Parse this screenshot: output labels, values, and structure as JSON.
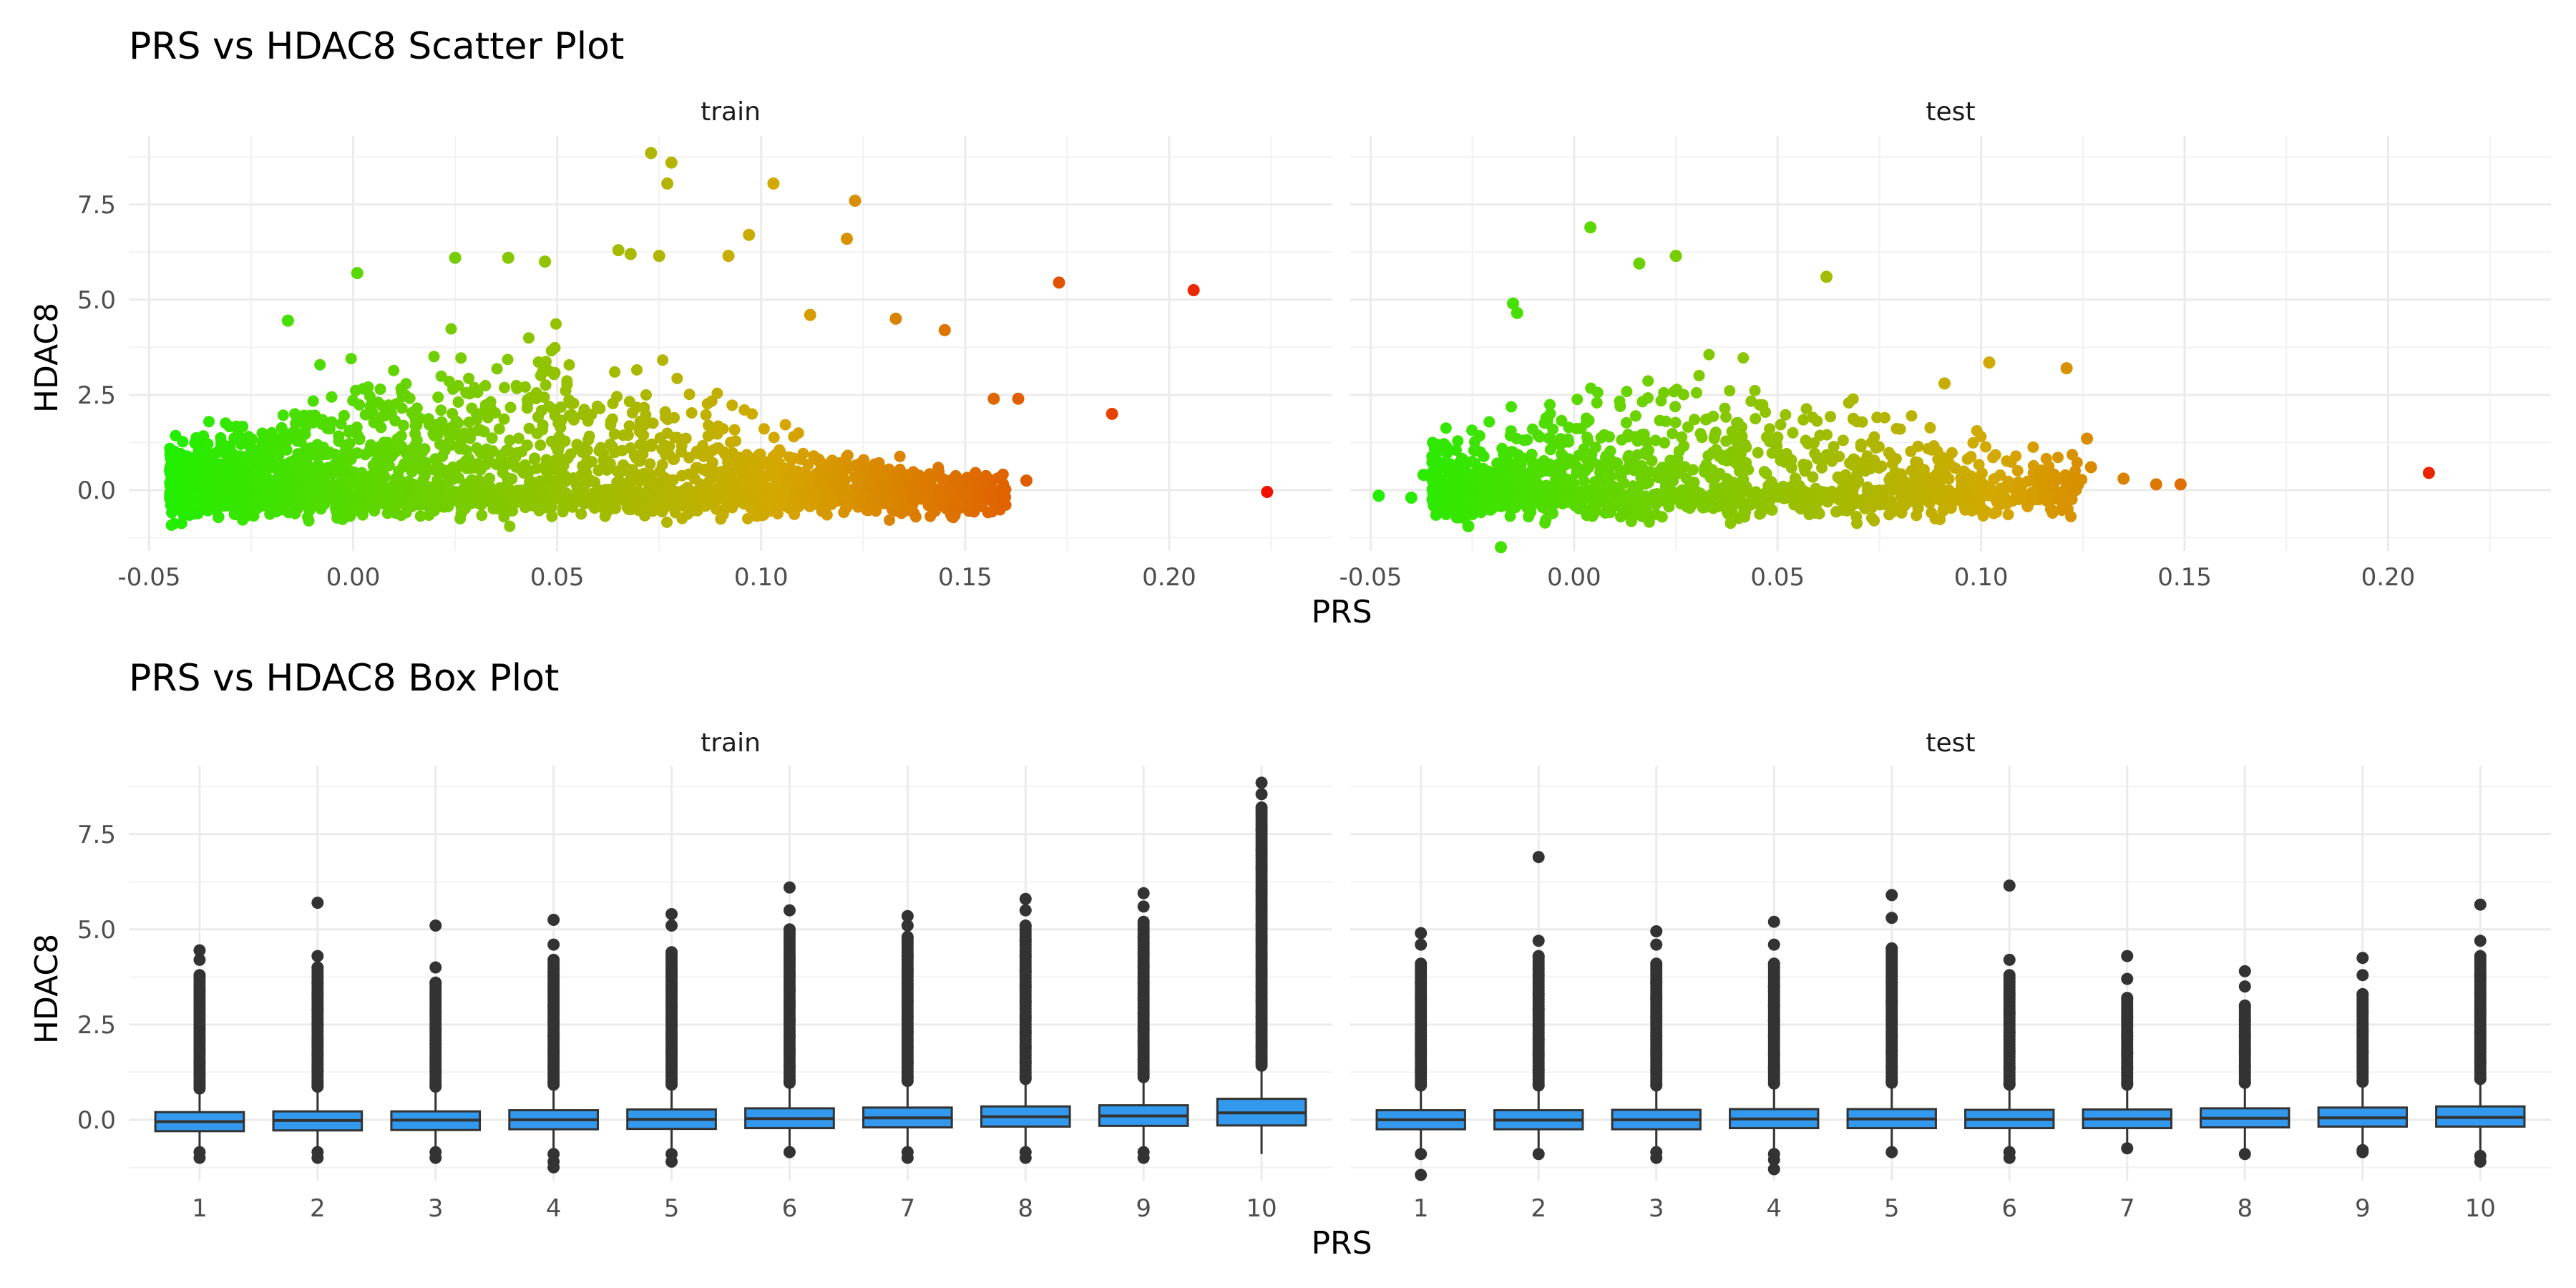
{
  "chart_data": [
    {
      "type": "scatter",
      "title": "PRS vs HDAC8 Scatter Plot",
      "xlabel": "PRS",
      "ylabel": "HDAC8",
      "xlim": [
        -0.055,
        0.24
      ],
      "ylim": [
        -1.6,
        9.3
      ],
      "x_ticks": [
        -0.05,
        0.0,
        0.05,
        0.1,
        0.15,
        0.2
      ],
      "x_tick_labels": [
        "-0.05",
        "0.00",
        "0.05",
        "0.10",
        "0.15",
        "0.20"
      ],
      "y_ticks": [
        0.0,
        2.5,
        5.0,
        7.5
      ],
      "y_tick_labels": [
        "0.0",
        "2.5",
        "5.0",
        "7.5"
      ],
      "color_scale": {
        "low": "#22ee00",
        "mid": "#d4a800",
        "high": "#ee1100",
        "domain": [
          -0.045,
          0.225
        ]
      },
      "grid": true,
      "panels": [
        {
          "name": "train",
          "notable_points": [
            {
              "x": 0.073,
              "y": 8.85
            },
            {
              "x": 0.078,
              "y": 8.6
            },
            {
              "x": 0.077,
              "y": 8.05
            },
            {
              "x": 0.103,
              "y": 8.05
            },
            {
              "x": 0.123,
              "y": 7.6
            },
            {
              "x": 0.097,
              "y": 6.7
            },
            {
              "x": 0.121,
              "y": 6.6
            },
            {
              "x": 0.065,
              "y": 6.3
            },
            {
              "x": 0.068,
              "y": 6.2
            },
            {
              "x": 0.075,
              "y": 6.15
            },
            {
              "x": 0.092,
              "y": 6.15
            },
            {
              "x": 0.173,
              "y": 5.45
            },
            {
              "x": 0.206,
              "y": 5.25
            },
            {
              "x": -0.016,
              "y": 4.45
            },
            {
              "x": 0.001,
              "y": 5.7
            },
            {
              "x": 0.025,
              "y": 6.1
            },
            {
              "x": 0.038,
              "y": 6.1
            },
            {
              "x": 0.047,
              "y": 6.0
            },
            {
              "x": 0.112,
              "y": 4.6
            },
            {
              "x": 0.133,
              "y": 4.5
            },
            {
              "x": 0.145,
              "y": 4.2
            },
            {
              "x": 0.163,
              "y": 2.4
            },
            {
              "x": 0.186,
              "y": 2.0
            },
            {
              "x": 0.157,
              "y": 2.4
            },
            {
              "x": 0.165,
              "y": 0.25
            },
            {
              "x": 0.224,
              "y": -0.05
            },
            {
              "x": 0.153,
              "y": -0.1
            },
            {
              "x": -0.044,
              "y": 0.0
            },
            {
              "x": -0.041,
              "y": -0.05
            }
          ],
          "bulk": {
            "x_range": [
              -0.045,
              0.16
            ],
            "y_range": [
              -1.2,
              6.0
            ],
            "center_y": 0.0
          }
        },
        {
          "name": "test",
          "notable_points": [
            {
              "x": 0.004,
              "y": 6.9
            },
            {
              "x": 0.025,
              "y": 6.15
            },
            {
              "x": 0.016,
              "y": 5.95
            },
            {
              "x": 0.062,
              "y": 5.6
            },
            {
              "x": -0.015,
              "y": 4.9
            },
            {
              "x": -0.014,
              "y": 4.65
            },
            {
              "x": 0.102,
              "y": 3.35
            },
            {
              "x": 0.121,
              "y": 3.2
            },
            {
              "x": 0.091,
              "y": 2.8
            },
            {
              "x": 0.126,
              "y": 1.35
            },
            {
              "x": 0.127,
              "y": 0.6
            },
            {
              "x": 0.135,
              "y": 0.3
            },
            {
              "x": 0.143,
              "y": 0.15
            },
            {
              "x": 0.149,
              "y": 0.15
            },
            {
              "x": 0.21,
              "y": 0.45
            },
            {
              "x": -0.048,
              "y": -0.15
            },
            {
              "x": -0.04,
              "y": -0.2
            },
            {
              "x": -0.037,
              "y": 0.4
            },
            {
              "x": -0.018,
              "y": -1.5
            },
            {
              "x": -0.026,
              "y": -0.95
            }
          ],
          "bulk": {
            "x_range": [
              -0.035,
              0.125
            ],
            "y_range": [
              -1.2,
              4.5
            ],
            "center_y": 0.0
          }
        }
      ]
    },
    {
      "type": "box",
      "title": "PRS vs HDAC8 Box Plot",
      "xlabel": "PRS",
      "ylabel": "HDAC8",
      "ylim": [
        -1.6,
        9.3
      ],
      "categories": [
        "1",
        "2",
        "3",
        "4",
        "5",
        "6",
        "7",
        "8",
        "9",
        "10"
      ],
      "y_ticks": [
        0.0,
        2.5,
        5.0,
        7.5
      ],
      "y_tick_labels": [
        "0.0",
        "2.5",
        "5.0",
        "7.5"
      ],
      "box_fill": "#3399ee",
      "box_line": "#333333",
      "grid": true,
      "panels": [
        {
          "name": "train",
          "boxes": [
            {
              "q1": -0.3,
              "median": -0.05,
              "q3": 0.2,
              "whisker_low": -0.8,
              "whisker_high": 0.7,
              "outliers_high": [
                0.9,
                1.2,
                1.5,
                1.8,
                2.1,
                2.4,
                2.9,
                3.4,
                3.8,
                4.2,
                4.45
              ],
              "outliers_low": [
                -0.85,
                -1.0
              ]
            },
            {
              "q1": -0.28,
              "median": -0.02,
              "q3": 0.22,
              "whisker_low": -0.8,
              "whisker_high": 0.75,
              "outliers_high": [
                0.9,
                1.3,
                1.7,
                2.1,
                2.5,
                2.9,
                3.3,
                3.6,
                4.0,
                4.3,
                5.7
              ],
              "outliers_low": [
                -0.85,
                -1.0
              ]
            },
            {
              "q1": -0.27,
              "median": -0.01,
              "q3": 0.22,
              "whisker_low": -0.8,
              "whisker_high": 0.75,
              "outliers_high": [
                0.9,
                1.3,
                1.6,
                2.0,
                2.4,
                2.8,
                3.2,
                3.6,
                4.0,
                5.1
              ],
              "outliers_low": [
                -0.85,
                -1.0
              ]
            },
            {
              "q1": -0.25,
              "median": 0.0,
              "q3": 0.25,
              "whisker_low": -0.8,
              "whisker_high": 0.8,
              "outliers_high": [
                1.0,
                1.4,
                1.8,
                2.2,
                2.6,
                3.0,
                3.4,
                3.8,
                4.2,
                4.6,
                5.25
              ],
              "outliers_low": [
                -0.9,
                -1.1,
                -1.25
              ]
            },
            {
              "q1": -0.24,
              "median": 0.01,
              "q3": 0.27,
              "whisker_low": -0.8,
              "whisker_high": 0.8,
              "outliers_high": [
                1.0,
                1.4,
                1.8,
                2.2,
                2.6,
                3.0,
                3.4,
                3.8,
                4.4,
                5.1,
                5.4
              ],
              "outliers_low": [
                -0.9,
                -1.1
              ]
            },
            {
              "q1": -0.22,
              "median": 0.03,
              "q3": 0.3,
              "whisker_low": -0.8,
              "whisker_high": 0.85,
              "outliers_high": [
                1.0,
                1.4,
                1.8,
                2.2,
                2.6,
                3.0,
                3.4,
                3.8,
                4.2,
                5.0,
                5.5,
                6.1
              ],
              "outliers_low": [
                -0.85
              ]
            },
            {
              "q1": -0.2,
              "median": 0.05,
              "q3": 0.32,
              "whisker_low": -0.8,
              "whisker_high": 0.9,
              "outliers_high": [
                1.1,
                1.5,
                1.9,
                2.3,
                2.7,
                3.1,
                3.5,
                3.9,
                4.3,
                4.8,
                5.1,
                5.35
              ],
              "outliers_low": [
                -0.85,
                -1.0
              ]
            },
            {
              "q1": -0.18,
              "median": 0.08,
              "q3": 0.35,
              "whisker_low": -0.8,
              "whisker_high": 0.95,
              "outliers_high": [
                1.1,
                1.5,
                1.9,
                2.3,
                2.7,
                3.1,
                3.5,
                3.9,
                4.3,
                4.7,
                5.1,
                5.5,
                5.8
              ],
              "outliers_low": [
                -0.85,
                -1.0
              ]
            },
            {
              "q1": -0.16,
              "median": 0.1,
              "q3": 0.38,
              "whisker_low": -0.8,
              "whisker_high": 1.0,
              "outliers_high": [
                1.2,
                1.6,
                2.0,
                2.4,
                2.8,
                3.2,
                3.6,
                4.0,
                4.4,
                4.8,
                5.2,
                5.6,
                5.95
              ],
              "outliers_low": [
                -0.85,
                -1.0
              ]
            },
            {
              "q1": -0.15,
              "median": 0.18,
              "q3": 0.55,
              "whisker_low": -0.9,
              "whisker_high": 1.3,
              "outliers_high": [
                1.5,
                1.9,
                2.3,
                2.7,
                3.1,
                3.5,
                3.9,
                4.3,
                4.7,
                5.1,
                5.5,
                6.0,
                6.6,
                7.1,
                7.6,
                8.2,
                8.55,
                8.85
              ],
              "outliers_low": []
            }
          ]
        },
        {
          "name": "test",
          "boxes": [
            {
              "q1": -0.25,
              "median": 0.0,
              "q3": 0.25,
              "whisker_low": -0.8,
              "whisker_high": 0.8,
              "outliers_high": [
                0.9,
                1.3,
                1.7,
                2.2,
                2.7,
                3.2,
                3.6,
                4.1,
                4.6,
                4.9
              ],
              "outliers_low": [
                -0.9,
                -1.45
              ]
            },
            {
              "q1": -0.25,
              "median": -0.01,
              "q3": 0.25,
              "whisker_low": -0.8,
              "whisker_high": 0.8,
              "outliers_high": [
                0.9,
                1.3,
                1.7,
                2.1,
                2.5,
                2.9,
                3.3,
                3.8,
                4.3,
                4.7,
                6.9
              ],
              "outliers_low": [
                -0.9
              ]
            },
            {
              "q1": -0.25,
              "median": 0.0,
              "q3": 0.26,
              "whisker_low": -0.8,
              "whisker_high": 0.8,
              "outliers_high": [
                0.9,
                1.3,
                1.7,
                2.2,
                2.7,
                3.2,
                3.6,
                4.1,
                4.6,
                4.95
              ],
              "outliers_low": [
                -0.85,
                -1.0
              ]
            },
            {
              "q1": -0.22,
              "median": 0.02,
              "q3": 0.28,
              "whisker_low": -0.8,
              "whisker_high": 0.85,
              "outliers_high": [
                0.95,
                1.35,
                1.75,
                2.2,
                2.6,
                3.0,
                3.5,
                4.1,
                4.6,
                5.2
              ],
              "outliers_low": [
                -0.9,
                -1.05,
                -1.3
              ]
            },
            {
              "q1": -0.22,
              "median": 0.02,
              "q3": 0.28,
              "whisker_low": -0.8,
              "whisker_high": 0.85,
              "outliers_high": [
                1.0,
                1.4,
                1.8,
                2.2,
                2.6,
                3.1,
                3.6,
                4.5,
                5.3,
                5.9
              ],
              "outliers_low": [
                -0.85
              ]
            },
            {
              "q1": -0.22,
              "median": 0.01,
              "q3": 0.26,
              "whisker_low": -0.8,
              "whisker_high": 0.8,
              "outliers_high": [
                0.95,
                1.35,
                1.8,
                2.3,
                2.8,
                3.3,
                3.8,
                4.2,
                6.15
              ],
              "outliers_low": [
                -0.85,
                -1.0
              ]
            },
            {
              "q1": -0.22,
              "median": 0.02,
              "q3": 0.27,
              "whisker_low": -0.8,
              "whisker_high": 0.8,
              "outliers_high": [
                0.95,
                1.35,
                1.75,
                2.2,
                2.7,
                3.2,
                3.7,
                4.3
              ],
              "outliers_low": [
                -0.75
              ]
            },
            {
              "q1": -0.2,
              "median": 0.04,
              "q3": 0.3,
              "whisker_low": -0.8,
              "whisker_high": 0.85,
              "outliers_high": [
                1.0,
                1.4,
                1.8,
                2.2,
                2.6,
                3.0,
                3.5,
                3.9
              ],
              "outliers_low": [
                -0.9
              ]
            },
            {
              "q1": -0.18,
              "median": 0.05,
              "q3": 0.32,
              "whisker_low": -0.8,
              "whisker_high": 0.9,
              "outliers_high": [
                1.0,
                1.4,
                1.8,
                2.3,
                2.8,
                3.3,
                3.8,
                4.25
              ],
              "outliers_low": [
                -0.8,
                -0.85
              ]
            },
            {
              "q1": -0.18,
              "median": 0.06,
              "q3": 0.35,
              "whisker_low": -0.8,
              "whisker_high": 0.95,
              "outliers_high": [
                1.1,
                1.5,
                1.9,
                2.3,
                2.8,
                3.3,
                3.8,
                4.3,
                4.7,
                5.65
              ],
              "outliers_low": [
                -0.95,
                -1.1
              ]
            }
          ]
        }
      ]
    }
  ]
}
